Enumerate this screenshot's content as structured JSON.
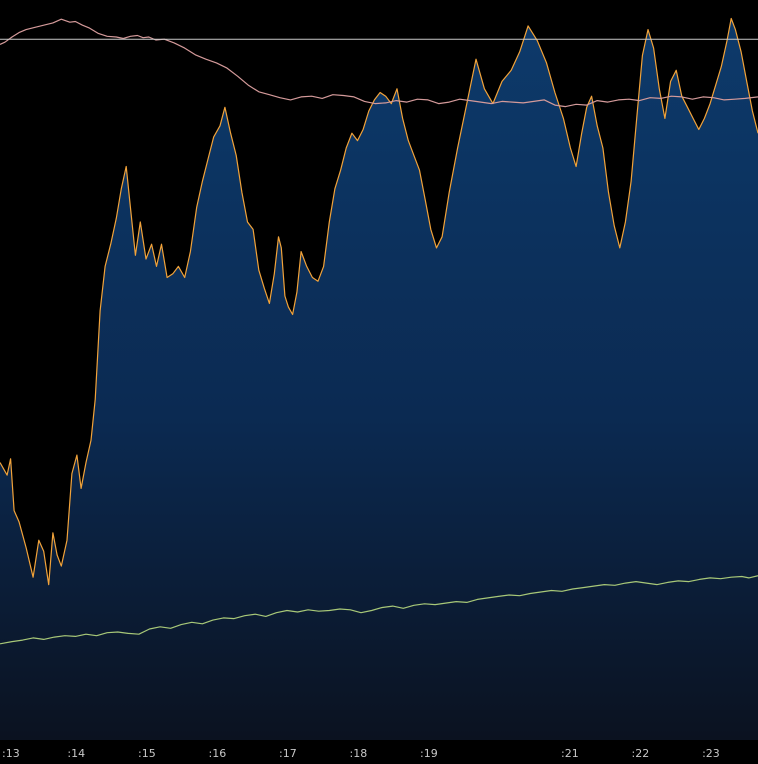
{
  "chart_data": {
    "type": "line",
    "title": "",
    "xlabel": "",
    "ylabel": "",
    "x_tick_labels": [
      ":13",
      ":14",
      ":15",
      ":16",
      ":17",
      ":18",
      ":19",
      ":21",
      ":22",
      ":23"
    ],
    "x_tick_positions": [
      13,
      14,
      15,
      16,
      17,
      18,
      19,
      21,
      22,
      23
    ],
    "xlim": [
      12.93,
      23.68
    ],
    "ylim": [
      0,
      100
    ],
    "grid": false,
    "legend": "none",
    "colors": {
      "background": "#000000",
      "area_top": "#0d3a6b",
      "area_bottom": "#0b1220",
      "orange_line": "#f2a33a",
      "pink_line": "#d49a9a",
      "green_line": "#a8c878",
      "reference_line": "#c9c9c9",
      "tick_label": "#c8c8c8"
    },
    "reference_line": {
      "y": 94.7
    },
    "series": [
      {
        "style": "area_with_line",
        "color": "#f2a33a",
        "x": [
          12.93,
          13.03,
          13.08,
          13.13,
          13.2,
          13.3,
          13.4,
          13.48,
          13.55,
          13.62,
          13.68,
          13.74,
          13.8,
          13.88,
          13.95,
          14.02,
          14.08,
          14.15,
          14.22,
          14.28,
          14.35,
          14.42,
          14.5,
          14.58,
          14.65,
          14.72,
          14.78,
          14.85,
          14.92,
          15.0,
          15.08,
          15.15,
          15.22,
          15.3,
          15.38,
          15.46,
          15.55,
          15.63,
          15.72,
          15.8,
          15.88,
          15.96,
          16.05,
          16.12,
          16.2,
          16.28,
          16.36,
          16.44,
          16.52,
          16.6,
          16.68,
          16.75,
          16.82,
          16.88,
          16.92,
          16.97,
          17.02,
          17.08,
          17.14,
          17.2,
          17.28,
          17.36,
          17.44,
          17.52,
          17.6,
          17.68,
          17.76,
          17.84,
          17.92,
          18.0,
          18.08,
          18.16,
          18.24,
          18.32,
          18.4,
          18.48,
          18.56,
          18.64,
          18.72,
          18.8,
          18.88,
          18.96,
          19.04,
          19.12,
          19.2,
          19.3,
          19.42,
          19.55,
          19.68,
          19.8,
          19.92,
          20.05,
          20.18,
          20.3,
          20.42,
          20.55,
          20.68,
          20.8,
          20.92,
          21.02,
          21.1,
          21.18,
          21.25,
          21.32,
          21.4,
          21.48,
          21.56,
          21.64,
          21.72,
          21.8,
          21.88,
          21.96,
          22.04,
          22.12,
          22.2,
          22.28,
          22.36,
          22.44,
          22.52,
          22.6,
          22.68,
          22.76,
          22.84,
          22.92,
          23.0,
          23.08,
          23.16,
          23.24,
          23.3,
          23.36,
          23.44,
          23.52,
          23.6,
          23.68
        ],
        "y": [
          37.5,
          35.8,
          38.0,
          31.0,
          29.5,
          26.0,
          22.0,
          27.0,
          25.5,
          21.0,
          28.0,
          25.0,
          23.5,
          27.0,
          36.0,
          38.5,
          34.0,
          37.5,
          40.5,
          46.0,
          58.0,
          64.0,
          67.0,
          70.5,
          74.5,
          77.5,
          72.0,
          65.5,
          70.0,
          65.0,
          67.0,
          64.0,
          67.0,
          62.5,
          63.0,
          64.0,
          62.5,
          66.0,
          72.0,
          75.5,
          78.5,
          81.5,
          83.0,
          85.5,
          82.0,
          79.0,
          74.0,
          70.0,
          69.0,
          63.5,
          61.0,
          59.0,
          63.0,
          68.0,
          66.5,
          60.0,
          58.5,
          57.5,
          60.5,
          66.0,
          64.0,
          62.5,
          62.0,
          64.0,
          70.0,
          74.5,
          77.0,
          80.0,
          82.0,
          81.0,
          82.5,
          85.0,
          86.5,
          87.5,
          87.0,
          86.0,
          88.0,
          84.0,
          81.0,
          79.0,
          77.0,
          73.0,
          69.0,
          66.5,
          68.0,
          74.0,
          80.0,
          86.0,
          92.0,
          88.0,
          86.0,
          89.0,
          90.5,
          93.0,
          96.5,
          94.5,
          91.5,
          87.5,
          84.0,
          80.0,
          77.5,
          82.0,
          85.5,
          87.0,
          83.0,
          80.0,
          74.0,
          69.5,
          66.5,
          70.0,
          75.5,
          84.0,
          92.5,
          96.0,
          93.5,
          88.0,
          84.0,
          89.0,
          90.5,
          87.0,
          85.5,
          84.0,
          82.5,
          84.0,
          86.0,
          88.5,
          91.0,
          94.5,
          97.5,
          96.0,
          93.0,
          89.0,
          85.0,
          82.0
        ]
      },
      {
        "style": "line",
        "color": "#d49a9a",
        "x": [
          12.93,
          13.0,
          13.1,
          13.2,
          13.3,
          13.42,
          13.55,
          13.68,
          13.8,
          13.92,
          14.0,
          14.1,
          14.2,
          14.32,
          14.45,
          14.58,
          14.68,
          14.78,
          14.88,
          14.96,
          15.04,
          15.14,
          15.26,
          15.4,
          15.55,
          15.7,
          15.85,
          16.0,
          16.15,
          16.3,
          16.45,
          16.6,
          16.75,
          16.9,
          17.05,
          17.2,
          17.35,
          17.5,
          17.65,
          17.8,
          17.95,
          18.1,
          18.25,
          18.4,
          18.55,
          18.7,
          18.85,
          19.0,
          19.15,
          19.3,
          19.45,
          19.6,
          19.75,
          19.9,
          20.05,
          20.2,
          20.35,
          20.5,
          20.65,
          20.8,
          20.95,
          21.1,
          21.25,
          21.4,
          21.55,
          21.7,
          21.85,
          22.0,
          22.15,
          22.3,
          22.45,
          22.6,
          22.75,
          22.9,
          23.05,
          23.2,
          23.35,
          23.5,
          23.68
        ],
        "y": [
          94.0,
          94.3,
          95.0,
          95.6,
          96.0,
          96.3,
          96.6,
          96.9,
          97.4,
          97.0,
          97.1,
          96.6,
          96.2,
          95.5,
          95.1,
          95.0,
          94.8,
          95.1,
          95.2,
          94.9,
          95.0,
          94.6,
          94.7,
          94.2,
          93.5,
          92.6,
          92.0,
          91.5,
          90.8,
          89.7,
          88.5,
          87.6,
          87.2,
          86.8,
          86.5,
          86.9,
          87.0,
          86.7,
          87.2,
          87.1,
          86.9,
          86.3,
          86.0,
          86.1,
          86.4,
          86.2,
          86.6,
          86.5,
          86.0,
          86.2,
          86.6,
          86.4,
          86.2,
          86.0,
          86.3,
          86.2,
          86.1,
          86.3,
          86.5,
          85.8,
          85.6,
          85.9,
          85.8,
          86.4,
          86.2,
          86.5,
          86.6,
          86.4,
          86.8,
          86.7,
          87.0,
          86.9,
          86.6,
          86.9,
          86.8,
          86.5,
          86.6,
          86.7,
          86.9
        ]
      },
      {
        "style": "line",
        "color": "#a8c878",
        "x": [
          12.93,
          13.1,
          13.25,
          13.4,
          13.55,
          13.7,
          13.85,
          14.0,
          14.15,
          14.3,
          14.45,
          14.6,
          14.75,
          14.9,
          15.05,
          15.2,
          15.35,
          15.5,
          15.65,
          15.8,
          15.95,
          16.1,
          16.25,
          16.4,
          16.55,
          16.7,
          16.85,
          17.0,
          17.15,
          17.3,
          17.45,
          17.6,
          17.75,
          17.9,
          18.05,
          18.2,
          18.35,
          18.5,
          18.65,
          18.8,
          18.95,
          19.1,
          19.25,
          19.4,
          19.55,
          19.7,
          19.85,
          20.0,
          20.15,
          20.3,
          20.45,
          20.6,
          20.75,
          20.9,
          21.05,
          21.2,
          21.35,
          21.5,
          21.65,
          21.8,
          21.95,
          22.1,
          22.25,
          22.4,
          22.55,
          22.7,
          22.85,
          23.0,
          23.15,
          23.3,
          23.45,
          23.55,
          23.68
        ],
        "y": [
          13.0,
          13.3,
          13.5,
          13.8,
          13.6,
          13.9,
          14.1,
          14.0,
          14.3,
          14.1,
          14.5,
          14.6,
          14.4,
          14.3,
          15.0,
          15.3,
          15.1,
          15.6,
          15.9,
          15.7,
          16.2,
          16.5,
          16.4,
          16.8,
          17.0,
          16.7,
          17.2,
          17.5,
          17.3,
          17.6,
          17.4,
          17.5,
          17.7,
          17.6,
          17.2,
          17.5,
          17.9,
          18.1,
          17.8,
          18.2,
          18.4,
          18.3,
          18.5,
          18.7,
          18.6,
          19.0,
          19.2,
          19.4,
          19.6,
          19.5,
          19.8,
          20.0,
          20.2,
          20.1,
          20.4,
          20.6,
          20.8,
          21.0,
          20.9,
          21.2,
          21.4,
          21.2,
          21.0,
          21.3,
          21.5,
          21.4,
          21.7,
          21.9,
          21.8,
          22.0,
          22.1,
          21.9,
          22.2
        ]
      }
    ]
  }
}
